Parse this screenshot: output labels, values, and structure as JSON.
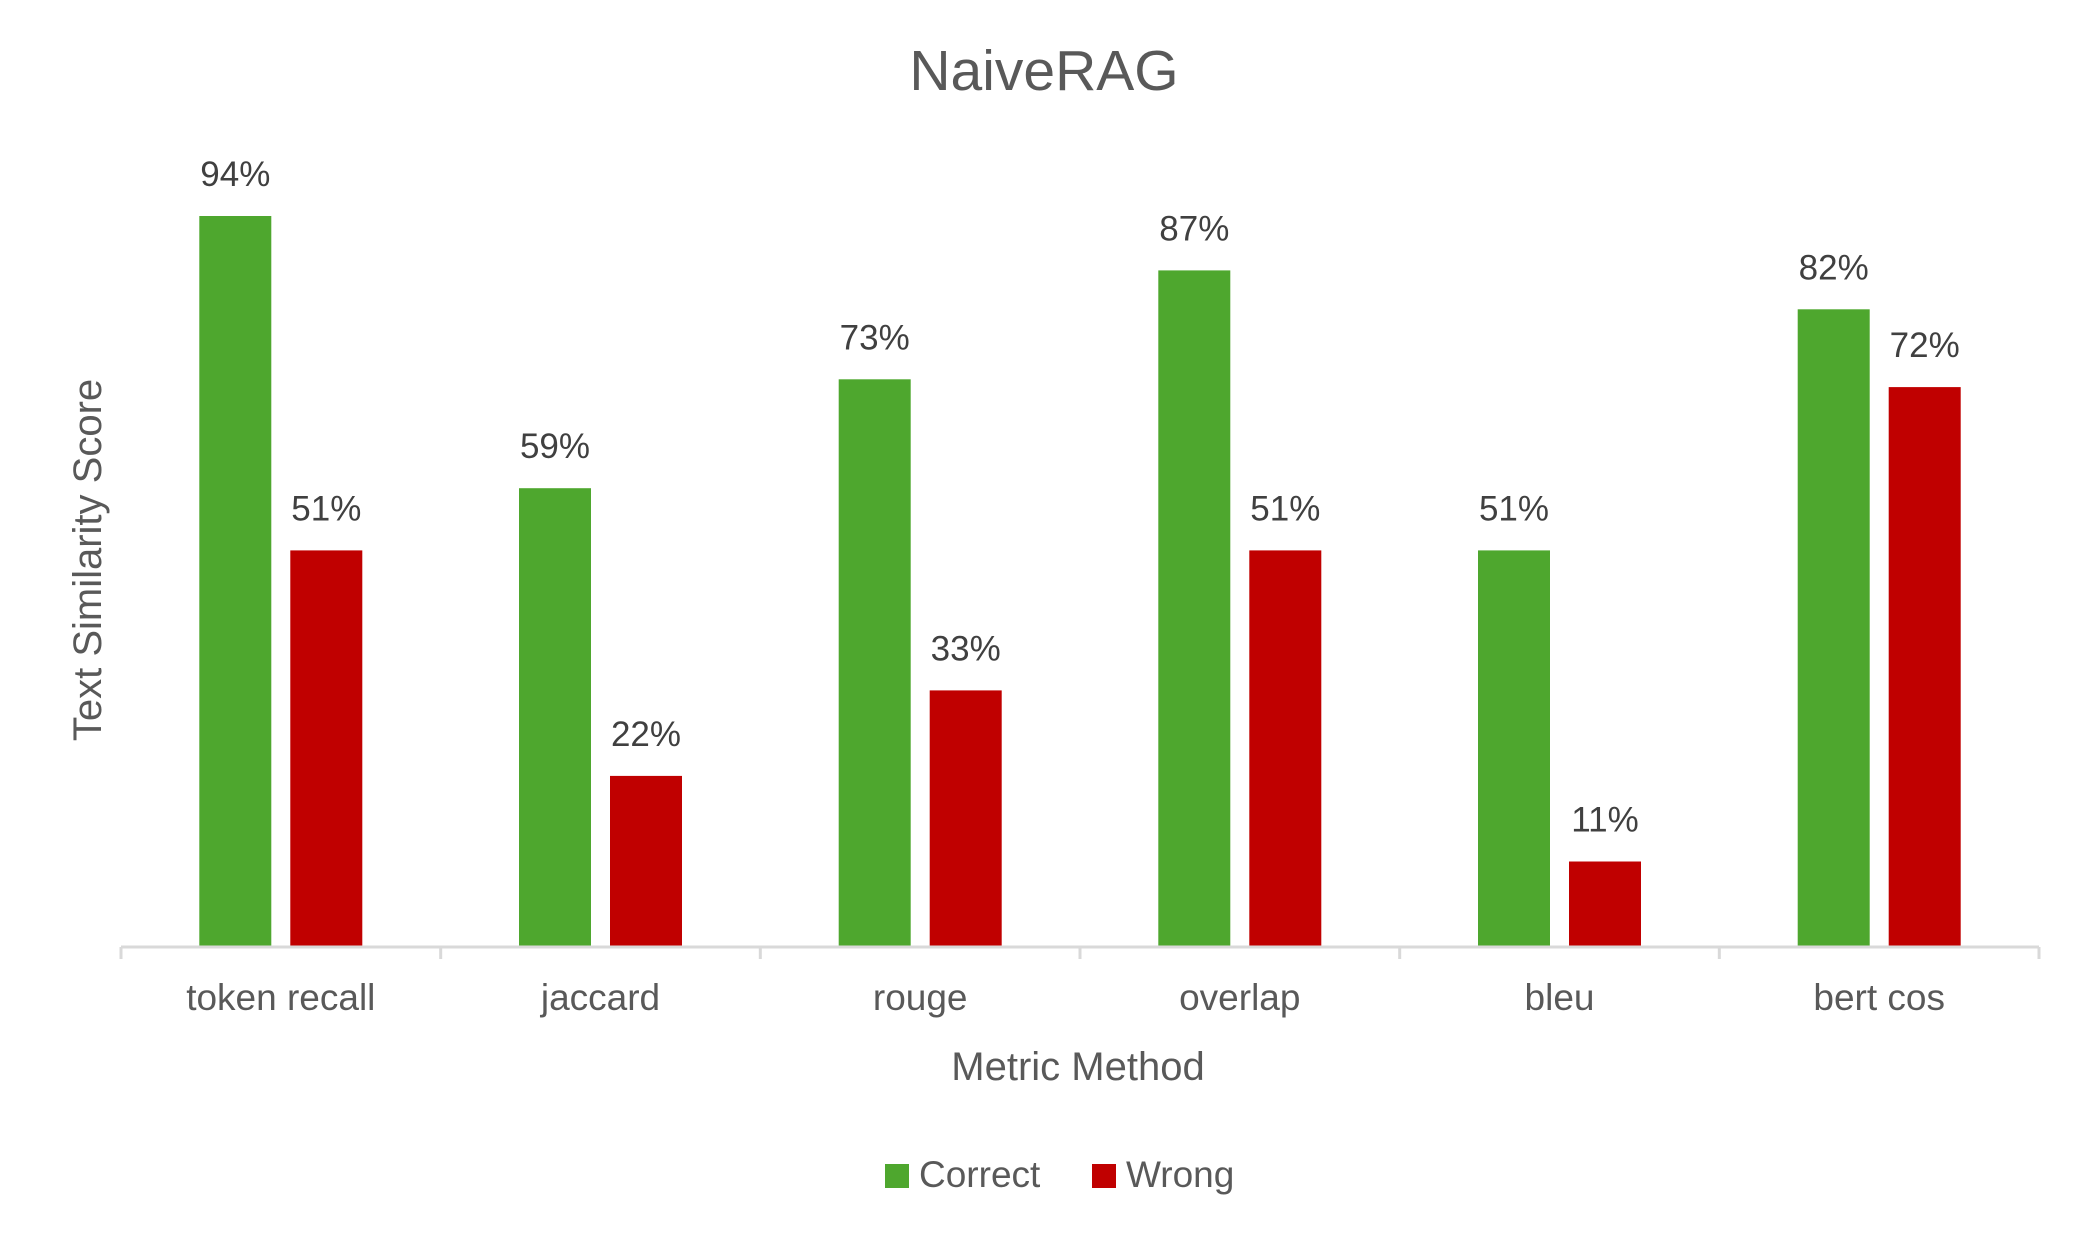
{
  "chart_data": {
    "type": "bar",
    "title": "NaiveRAG",
    "xlabel": "Metric Method",
    "ylabel": "Text Similarity Score",
    "categories": [
      "token recall",
      "jaccard",
      "rouge",
      "overlap",
      "bleu",
      "bert cos"
    ],
    "series": [
      {
        "name": "Correct",
        "color": "#4ea72e",
        "values": [
          0.94,
          0.59,
          0.73,
          0.87,
          0.51,
          0.82
        ],
        "labels": [
          "94%",
          "59%",
          "73%",
          "87%",
          "51%",
          "82%"
        ]
      },
      {
        "name": "Wrong",
        "color": "#c00000",
        "values": [
          0.51,
          0.22,
          0.33,
          0.51,
          0.11,
          0.72
        ],
        "labels": [
          "51%",
          "22%",
          "33%",
          "51%",
          "11%",
          "72%"
        ]
      }
    ],
    "ylim": [
      0,
      1
    ],
    "grid": false,
    "y_axis_visible": false,
    "legend_position": "bottom"
  }
}
